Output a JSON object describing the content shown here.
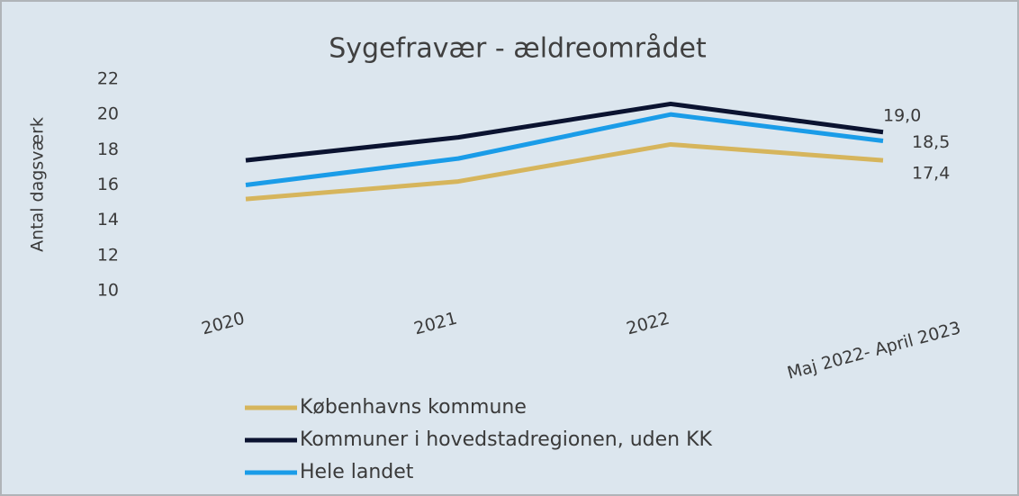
{
  "chart_data": {
    "type": "line",
    "title": "Sygefravær - ældreområdet",
    "y_label": "Antal dagsværk",
    "categories": [
      "2020",
      "2021",
      "2022",
      "Maj 2022- April 2023"
    ],
    "series": [
      {
        "name": "Københavns kommune",
        "color": "#d6b55c",
        "values": [
          15.2,
          16.2,
          18.3,
          17.4
        ],
        "value_labels": [
          null,
          null,
          null,
          "17,4"
        ]
      },
      {
        "name": "Kommuner i hovedstadregionen, uden KK",
        "color": "#0b1330",
        "values": [
          17.4,
          18.7,
          20.6,
          19.0
        ],
        "value_labels": [
          null,
          null,
          null,
          "19,0"
        ]
      },
      {
        "name": "Hele landet",
        "color": "#1a9ce8",
        "values": [
          16.0,
          17.5,
          20.0,
          18.5
        ],
        "value_labels": [
          null,
          null,
          null,
          "18,5"
        ]
      }
    ],
    "ylim": [
      10,
      22
    ],
    "yticks": [
      10,
      12,
      14,
      16,
      18,
      20,
      22
    ],
    "grid": false,
    "legend": "bottom"
  }
}
